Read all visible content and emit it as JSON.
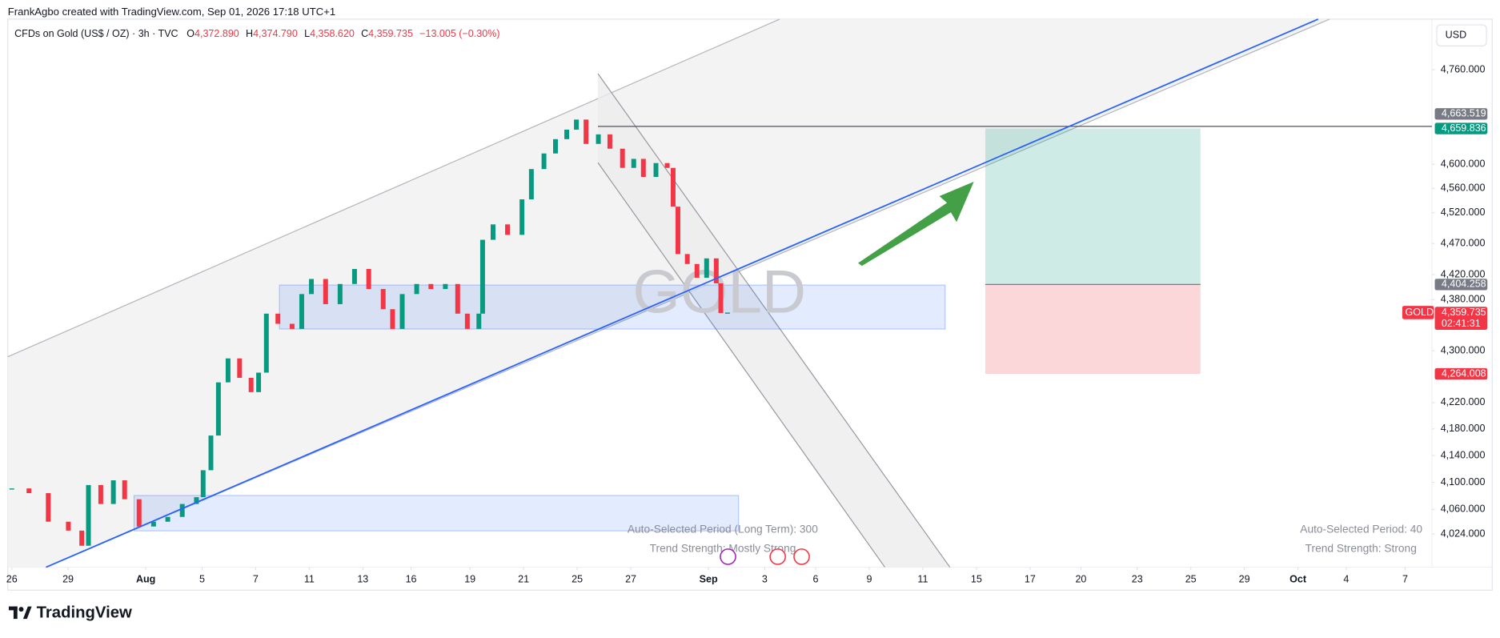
{
  "header": {
    "author_line": "FrankAgbo created with TradingView.com, Sep 01, 2026 17:18 UTC+1",
    "symbol": "CFDs on Gold (US$ / OZ) · 3h · TVC",
    "ohlc": [
      {
        "key": "O",
        "value": "4,372.890"
      },
      {
        "key": "H",
        "value": "4,374.790"
      },
      {
        "key": "L",
        "value": "4,358.620"
      },
      {
        "key": "C",
        "value": "4,359.735"
      }
    ],
    "change": "−13.005 (−0.30%)"
  },
  "currency_button": "USD",
  "chart_data": {
    "type": "candlestick",
    "watermark": "GOLD",
    "up_color": "#089981",
    "down_color": "#f23645",
    "log_scale": true,
    "x": [
      0,
      0.64,
      1.36,
      2.11,
      2.61,
      2.86,
      3.32,
      3.79,
      4.21,
      4.75,
      5.29,
      5.82,
      6.36,
      6.89,
      7.14,
      7.43,
      7.71,
      8.07,
      8.5,
      8.93,
      9.21,
      9.5,
      9.93,
      10.46,
      10.82,
      11.18,
      11.71,
      12.25,
      12.79,
      13.32,
      13.86,
      14.21,
      14.57,
      15.11,
      15.64,
      16.18,
      16.64,
      17,
      17.43,
      17.57,
      17.96,
      18.5,
      19.04,
      19.39,
      19.86,
      20.29,
      20.71,
      21.07,
      21.43,
      21.89,
      22.32,
      22.79,
      23.21,
      23.57,
      24.04,
      24.46,
      24.68,
      24.86,
      25.21,
      25.57,
      25.93,
      26.29,
      26.46,
      26.71
    ],
    "values": [
      4091,
      4084,
      4042,
      4029,
      4007,
      4096,
      4068,
      4103,
      4075,
      4035,
      4042,
      4049,
      4068,
      4078,
      4118,
      4170,
      4251,
      4288,
      4258,
      4236,
      4266,
      4358,
      4342,
      4334,
      4389,
      4413,
      4373,
      4405,
      4429,
      4397,
      4365,
      4334,
      4389,
      4405,
      4397,
      4405,
      4358,
      4334,
      4358,
      4476,
      4501,
      4484,
      4542,
      4592,
      4618,
      4642,
      4658,
      4675,
      4634,
      4650,
      4626,
      4594,
      4609,
      4579,
      4602,
      4594,
      4530,
      4453,
      4437,
      4415,
      4446,
      4406,
      4359,
      4359.735
    ],
    "xlim": [
      -0.15,
      53
    ],
    "ylim": [
      3976,
      4848
    ],
    "yticks": [
      {
        "value": 4760,
        "label": "4,760.000"
      },
      {
        "value": 4600,
        "label": "4,600.000"
      },
      {
        "value": 4560,
        "label": "4,560.000"
      },
      {
        "value": 4520,
        "label": "4,520.000"
      },
      {
        "value": 4470,
        "label": "4,470.000"
      },
      {
        "value": 4420,
        "label": "4,420.000"
      },
      {
        "value": 4380,
        "label": "4,380.000"
      },
      {
        "value": 4300,
        "label": "4,300.000"
      },
      {
        "value": 4220,
        "label": "4,220.000"
      },
      {
        "value": 4180,
        "label": "4,180.000"
      },
      {
        "value": 4140,
        "label": "4,140.000"
      },
      {
        "value": 4100,
        "label": "4,100.000"
      },
      {
        "value": 4060,
        "label": "4,060.000"
      },
      {
        "value": 4024,
        "label": "4,024.000"
      }
    ],
    "xticks": [
      {
        "value": 0,
        "label": "26"
      },
      {
        "value": 2.1,
        "label": "29"
      },
      {
        "value": 5,
        "label": "Aug"
      },
      {
        "value": 7.1,
        "label": "5"
      },
      {
        "value": 9.1,
        "label": "7"
      },
      {
        "value": 11.1,
        "label": "11"
      },
      {
        "value": 13.1,
        "label": "13"
      },
      {
        "value": 14.9,
        "label": "16"
      },
      {
        "value": 17.1,
        "label": "19"
      },
      {
        "value": 19.1,
        "label": "21"
      },
      {
        "value": 21.1,
        "label": "25"
      },
      {
        "value": 23.1,
        "label": "27"
      },
      {
        "value": 26,
        "label": "Sep"
      },
      {
        "value": 28.1,
        "label": "3"
      },
      {
        "value": 30,
        "label": "6"
      },
      {
        "value": 32,
        "label": "9"
      },
      {
        "value": 34,
        "label": "11"
      },
      {
        "value": 36,
        "label": "15"
      },
      {
        "value": 38,
        "label": "17"
      },
      {
        "value": 39.9,
        "label": "20"
      },
      {
        "value": 42,
        "label": "23"
      },
      {
        "value": 44,
        "label": "25"
      },
      {
        "value": 46,
        "label": "29"
      },
      {
        "value": 48,
        "label": "Oct"
      },
      {
        "value": 49.8,
        "label": "4"
      },
      {
        "value": 52,
        "label": "7"
      }
    ]
  },
  "price_badges": [
    {
      "value": 4663.519,
      "label": "4,663.519",
      "color": "#787b86"
    },
    {
      "value": 4659.836,
      "label": "4,659.836",
      "color": "#089981"
    },
    {
      "value": 4404.258,
      "label": "4,404.258",
      "color": "#787b86"
    },
    {
      "value": 4359.735,
      "label": "4,359.735",
      "color": "#f23645"
    },
    {
      "value": 4264.008,
      "label": "4,264.008",
      "color": "#f23645"
    }
  ],
  "countdown": "02:41:31",
  "symbol_badge": "GOLD",
  "indicators": [
    {
      "period": "Auto-Selected Period (Long Term): 300",
      "strength": "Trend Strength: Mostly Strong"
    },
    {
      "period": "Auto-Selected Period: 40",
      "strength": "Trend Strength: Strong"
    }
  ],
  "logo": "TradingView"
}
